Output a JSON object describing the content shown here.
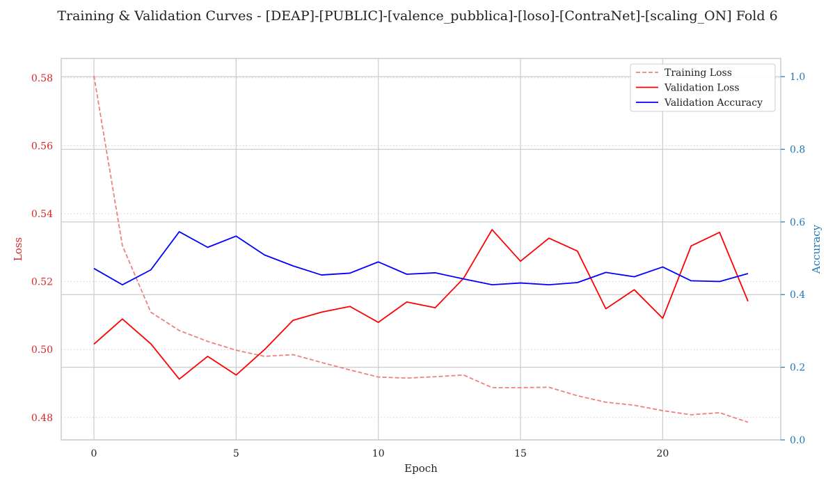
{
  "chart_data": {
    "type": "line",
    "title": "Training & Validation Curves - [DEAP]-[PUBLIC]-[valence_pubblica]-[loso]-[ContraNet]-[scaling_ON] Fold 6",
    "xlabel": "Epoch",
    "ylabel_left": "Loss",
    "ylabel_right": "Accuracy",
    "x": [
      0,
      1,
      2,
      3,
      4,
      5,
      6,
      7,
      8,
      9,
      10,
      11,
      12,
      13,
      14,
      15,
      16,
      17,
      18,
      19,
      20,
      21,
      22,
      23
    ],
    "xlim": [
      -1.15,
      24.15
    ],
    "xticks": [
      0,
      5,
      10,
      15,
      20
    ],
    "xtick_labels": [
      "0",
      "5",
      "10",
      "15",
      "20"
    ],
    "ylim_left": [
      0.4734,
      0.5857
    ],
    "yticks_left": [
      0.48,
      0.5,
      0.52,
      0.54,
      0.56,
      0.58
    ],
    "ytick_labels_left": [
      "0.48",
      "0.50",
      "0.52",
      "0.54",
      "0.56",
      "0.58"
    ],
    "ylim_right": [
      0.0,
      1.05
    ],
    "yticks_right": [
      0.0,
      0.2,
      0.4,
      0.6,
      0.8,
      1.0
    ],
    "ytick_labels_right": [
      "0.0",
      "0.2",
      "0.4",
      "0.6",
      "0.8",
      "1.0"
    ],
    "grid": true,
    "legend_position": "top-right",
    "colors": {
      "left_axis": "#d62728",
      "right_axis": "#1f77b4",
      "grid": "#cccccc",
      "frame": "#cccccc"
    },
    "series": [
      {
        "name": "Training Loss",
        "axis": "left",
        "color": "#f08080",
        "style": "dashed",
        "values": [
          0.5806,
          0.5306,
          0.511,
          0.5056,
          0.5024,
          0.4998,
          0.498,
          0.4985,
          0.4962,
          0.494,
          0.4919,
          0.4916,
          0.492,
          0.4925,
          0.4888,
          0.4888,
          0.4889,
          0.4864,
          0.4845,
          0.4836,
          0.482,
          0.4808,
          0.4814,
          0.4786
        ]
      },
      {
        "name": "Validation Loss",
        "axis": "left",
        "color": "#ff0000",
        "style": "solid",
        "values": [
          0.5016,
          0.509,
          0.5017,
          0.4913,
          0.498,
          0.4925,
          0.5,
          0.5086,
          0.511,
          0.5127,
          0.508,
          0.514,
          0.5123,
          0.521,
          0.5353,
          0.526,
          0.5328,
          0.529,
          0.512,
          0.5176,
          0.5092,
          0.5305,
          0.5345,
          0.5142
        ]
      },
      {
        "name": "Validation Accuracy",
        "axis": "right",
        "color": "#0000ff",
        "style": "solid",
        "values": [
          0.472,
          0.427,
          0.468,
          0.573,
          0.53,
          0.561,
          0.509,
          0.479,
          0.454,
          0.459,
          0.49,
          0.456,
          0.46,
          0.443,
          0.427,
          0.432,
          0.427,
          0.433,
          0.461,
          0.449,
          0.476,
          0.438,
          0.436,
          0.458
        ]
      }
    ]
  }
}
